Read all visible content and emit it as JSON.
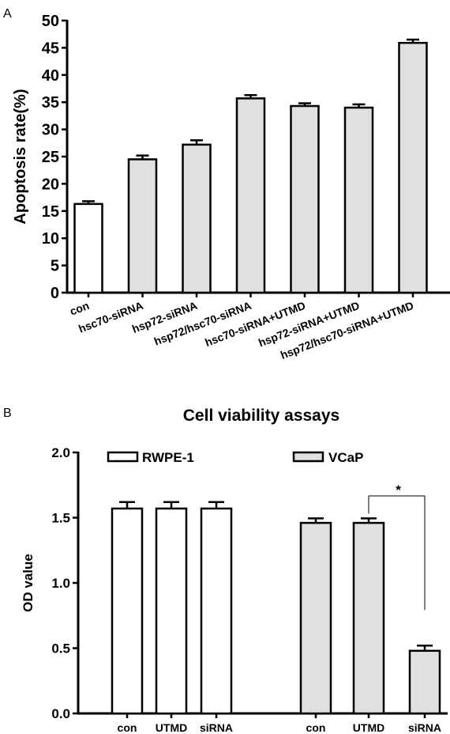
{
  "chart_data": [
    {
      "panel": "A",
      "type": "bar",
      "title": "",
      "xlabel": "",
      "ylabel": "Apoptosis rate(%)",
      "ylim": [
        0,
        50
      ],
      "yticks": [
        "0",
        "5",
        "10",
        "15",
        "20",
        "25",
        "30",
        "35",
        "40",
        "45",
        "50"
      ],
      "categories": [
        "con",
        "hsc70-siRNA",
        "hsp72-siRNA",
        "hsp72/hsc70-siRNA",
        "hsc70-siRNA+UTMD",
        "hsp72-siRNA+UTMD",
        "hsp72/hsc70-siRNA+UTMD"
      ],
      "values": [
        16.3,
        24.5,
        27.2,
        35.7,
        34.3,
        34.0,
        45.9
      ],
      "errors": [
        0.5,
        0.7,
        0.8,
        0.6,
        0.5,
        0.6,
        0.6
      ],
      "fills": [
        "#ffffff",
        "#e0e0e0",
        "#e0e0e0",
        "#e0e0e0",
        "#e0e0e0",
        "#e0e0e0",
        "#e0e0e0"
      ],
      "grid": false
    },
    {
      "panel": "B",
      "type": "bar",
      "title": "Cell viability assays",
      "xlabel": "",
      "ylabel": "OD value",
      "ylim": [
        0,
        2
      ],
      "yticks": [
        "0.0",
        "0.5",
        "1.0",
        "1.5",
        "2.0"
      ],
      "legend_position": "top",
      "series": [
        {
          "name": "RWPE-1",
          "color": "#ffffff",
          "categories": [
            "con",
            "UTMD",
            "siRNA"
          ],
          "values": [
            1.57,
            1.57,
            1.57
          ],
          "errors": [
            0.05,
            0.05,
            0.05
          ]
        },
        {
          "name": "VCaP",
          "color": "#e0e0e0",
          "categories": [
            "con",
            "UTMD",
            "siRNA"
          ],
          "values": [
            1.46,
            1.46,
            0.48
          ],
          "errors": [
            0.035,
            0.035,
            0.04
          ]
        }
      ],
      "annotation": {
        "text": "*",
        "between": [
          "UTMD",
          "siRNA"
        ],
        "series": "VCaP"
      },
      "grid": false
    }
  ],
  "labels": {
    "panel_a": "A",
    "panel_b": "B"
  }
}
